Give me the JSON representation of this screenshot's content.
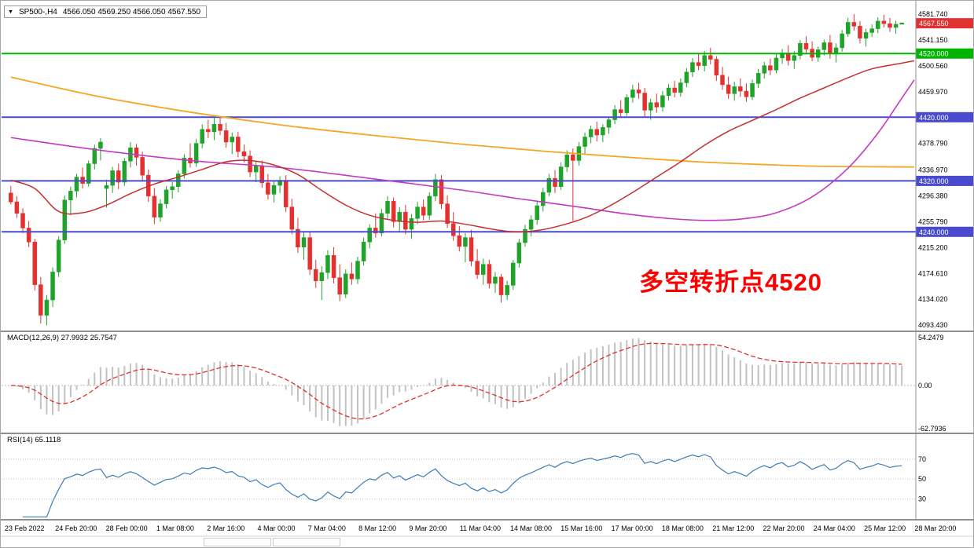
{
  "header": {
    "symbol_period": "SP500-,H4",
    "ohlc": "4566.050 4569.250 4566.050 4567.550"
  },
  "annotation": {
    "text": "多空转折点4520",
    "color": "#ff0000"
  },
  "chart_data": {
    "type": "candlestick",
    "title": "SP500-,H4",
    "timeframe": "H4",
    "colors": {
      "up": "#1fa32a",
      "down": "#e53030",
      "macd_hist": "#c2c2c2",
      "macd_signal": "#e03030",
      "rsi": "#3e7bb6",
      "level_dotted": "#c0c0c0",
      "divider": "#8f8f8f"
    },
    "x_labels": [
      "23 Feb 2022",
      "24 Feb 20:00",
      "28 Feb 00:00",
      "1 Mar 08:00",
      "2 Mar 16:00",
      "4 Mar 00:00",
      "7 Mar 04:00",
      "8 Mar 12:00",
      "9 Mar 20:00",
      "11 Mar 04:00",
      "14 Mar 08:00",
      "15 Mar 16:00",
      "17 Mar 00:00",
      "18 Mar 08:00",
      "21 Mar 12:00",
      "22 Mar 20:00",
      "24 Mar 04:00",
      "25 Mar 12:00",
      "28 Mar 20:00"
    ],
    "candles": [
      [
        4301,
        4312,
        4283,
        4287
      ],
      [
        4287,
        4296,
        4262,
        4269
      ],
      [
        4269,
        4277,
        4238,
        4246
      ],
      [
        4246,
        4257,
        4216,
        4224
      ],
      [
        4224,
        4229,
        4148,
        4157
      ],
      [
        4157,
        4169,
        4096,
        4109
      ],
      [
        4109,
        4141,
        4093,
        4133
      ],
      [
        4133,
        4184,
        4122,
        4177
      ],
      [
        4177,
        4233,
        4169,
        4227
      ],
      [
        4227,
        4297,
        4221,
        4290
      ],
      [
        4290,
        4311,
        4266,
        4304
      ],
      [
        4304,
        4331,
        4294,
        4326
      ],
      [
        4326,
        4341,
        4308,
        4316
      ],
      [
        4316,
        4352,
        4311,
        4347
      ],
      [
        4347,
        4377,
        4338,
        4371
      ],
      [
        4371,
        4387,
        4352,
        4381
      ],
      [
        4308,
        4322,
        4278,
        4313
      ],
      [
        4313,
        4342,
        4301,
        4336
      ],
      [
        4336,
        4347,
        4307,
        4318
      ],
      [
        4318,
        4356,
        4312,
        4351
      ],
      [
        4351,
        4381,
        4341,
        4372
      ],
      [
        4372,
        4378,
        4344,
        4357
      ],
      [
        4357,
        4366,
        4321,
        4329
      ],
      [
        4329,
        4338,
        4287,
        4296
      ],
      [
        4296,
        4309,
        4252,
        4263
      ],
      [
        4263,
        4291,
        4256,
        4284
      ],
      [
        4284,
        4312,
        4277,
        4306
      ],
      [
        4306,
        4318,
        4292,
        4311
      ],
      [
        4311,
        4337,
        4302,
        4331
      ],
      [
        4331,
        4362,
        4324,
        4356
      ],
      [
        4356,
        4379,
        4341,
        4348
      ],
      [
        4348,
        4386,
        4342,
        4379
      ],
      [
        4379,
        4409,
        4371,
        4401
      ],
      [
        4401,
        4416,
        4387,
        4397
      ],
      [
        4397,
        4419,
        4384,
        4409
      ],
      [
        4409,
        4421,
        4392,
        4399
      ],
      [
        4399,
        4411,
        4372,
        4381
      ],
      [
        4381,
        4396,
        4362,
        4389
      ],
      [
        4389,
        4397,
        4357,
        4366
      ],
      [
        4366,
        4377,
        4349,
        4359
      ],
      [
        4359,
        4368,
        4326,
        4334
      ],
      [
        4334,
        4351,
        4318,
        4344
      ],
      [
        4344,
        4352,
        4309,
        4317
      ],
      [
        4317,
        4331,
        4291,
        4299
      ],
      [
        4299,
        4321,
        4286,
        4313
      ],
      [
        4313,
        4327,
        4301,
        4321
      ],
      [
        4321,
        4329,
        4271,
        4279
      ],
      [
        4279,
        4292,
        4236,
        4244
      ],
      [
        4244,
        4262,
        4207,
        4216
      ],
      [
        4216,
        4241,
        4196,
        4231
      ],
      [
        4231,
        4239,
        4172,
        4181
      ],
      [
        4181,
        4196,
        4152,
        4163
      ],
      [
        4163,
        4186,
        4133,
        4176
      ],
      [
        4176,
        4211,
        4166,
        4203
      ],
      [
        4203,
        4216,
        4159,
        4168
      ],
      [
        4168,
        4189,
        4131,
        4142
      ],
      [
        4142,
        4181,
        4136,
        4174
      ],
      [
        4174,
        4192,
        4157,
        4166
      ],
      [
        4166,
        4201,
        4158,
        4194
      ],
      [
        4194,
        4231,
        4187,
        4224
      ],
      [
        4224,
        4252,
        4214,
        4246
      ],
      [
        4246,
        4269,
        4231,
        4238
      ],
      [
        4238,
        4276,
        4233,
        4269
      ],
      [
        4269,
        4296,
        4259,
        4288
      ],
      [
        4288,
        4294,
        4247,
        4256
      ],
      [
        4256,
        4279,
        4241,
        4271
      ],
      [
        4271,
        4282,
        4236,
        4244
      ],
      [
        4244,
        4268,
        4229,
        4261
      ],
      [
        4261,
        4287,
        4252,
        4279
      ],
      [
        4279,
        4291,
        4258,
        4266
      ],
      [
        4266,
        4302,
        4259,
        4296
      ],
      [
        4296,
        4331,
        4288,
        4322
      ],
      [
        4322,
        4329,
        4276,
        4284
      ],
      [
        4284,
        4297,
        4246,
        4253
      ],
      [
        4253,
        4271,
        4226,
        4234
      ],
      [
        4234,
        4249,
        4209,
        4217
      ],
      [
        4217,
        4238,
        4192,
        4231
      ],
      [
        4231,
        4243,
        4186,
        4194
      ],
      [
        4194,
        4213,
        4166,
        4173
      ],
      [
        4173,
        4198,
        4157,
        4189
      ],
      [
        4189,
        4196,
        4151,
        4159
      ],
      [
        4159,
        4177,
        4144,
        4169
      ],
      [
        4169,
        4174,
        4129,
        4141
      ],
      [
        4141,
        4163,
        4133,
        4156
      ],
      [
        4156,
        4196,
        4149,
        4191
      ],
      [
        4191,
        4229,
        4184,
        4223
      ],
      [
        4223,
        4251,
        4217,
        4244
      ],
      [
        4244,
        4266,
        4233,
        4259
      ],
      [
        4259,
        4288,
        4251,
        4281
      ],
      [
        4281,
        4309,
        4272,
        4302
      ],
      [
        4302,
        4331,
        4296,
        4324
      ],
      [
        4324,
        4337,
        4301,
        4311
      ],
      [
        4311,
        4349,
        4306,
        4342
      ],
      [
        4342,
        4368,
        4334,
        4361
      ],
      [
        4361,
        4371,
        4257,
        4352
      ],
      [
        4352,
        4381,
        4344,
        4374
      ],
      [
        4374,
        4396,
        4361,
        4389
      ],
      [
        4389,
        4407,
        4379,
        4401
      ],
      [
        4401,
        4413,
        4382,
        4392
      ],
      [
        4392,
        4409,
        4381,
        4404
      ],
      [
        4404,
        4421,
        4394,
        4416
      ],
      [
        4416,
        4439,
        4409,
        4432
      ],
      [
        4432,
        4447,
        4419,
        4427
      ],
      [
        4427,
        4456,
        4422,
        4451
      ],
      [
        4451,
        4471,
        4443,
        4463
      ],
      [
        4463,
        4474,
        4449,
        4458
      ],
      [
        4458,
        4466,
        4421,
        4431
      ],
      [
        4431,
        4449,
        4416,
        4443
      ],
      [
        4443,
        4457,
        4427,
        4436
      ],
      [
        4436,
        4461,
        4429,
        4454
      ],
      [
        4454,
        4472,
        4446,
        4466
      ],
      [
        4466,
        4477,
        4451,
        4459
      ],
      [
        4459,
        4481,
        4452,
        4474
      ],
      [
        4474,
        4497,
        4467,
        4491
      ],
      [
        4491,
        4513,
        4483,
        4506
      ],
      [
        4506,
        4521,
        4494,
        4501
      ],
      [
        4501,
        4524,
        4492,
        4517
      ],
      [
        4517,
        4529,
        4503,
        4511
      ],
      [
        4511,
        4516,
        4477,
        4486
      ],
      [
        4486,
        4499,
        4463,
        4471
      ],
      [
        4471,
        4484,
        4449,
        4457
      ],
      [
        4457,
        4476,
        4446,
        4468
      ],
      [
        4468,
        4481,
        4452,
        4461
      ],
      [
        4461,
        4473,
        4444,
        4452
      ],
      [
        4452,
        4479,
        4447,
        4473
      ],
      [
        4473,
        4496,
        4466,
        4489
      ],
      [
        4489,
        4507,
        4481,
        4501
      ],
      [
        4501,
        4512,
        4486,
        4494
      ],
      [
        4494,
        4519,
        4489,
        4513
      ],
      [
        4513,
        4527,
        4504,
        4521
      ],
      [
        4521,
        4533,
        4501,
        4509
      ],
      [
        4509,
        4524,
        4496,
        4517
      ],
      [
        4517,
        4541,
        4511,
        4536
      ],
      [
        4536,
        4547,
        4519,
        4527
      ],
      [
        4527,
        4539,
        4508,
        4514
      ],
      [
        4514,
        4531,
        4507,
        4526
      ],
      [
        4526,
        4542,
        4517,
        4537
      ],
      [
        4537,
        4549,
        4512,
        4521
      ],
      [
        4521,
        4536,
        4506,
        4529
      ],
      [
        4529,
        4557,
        4523,
        4551
      ],
      [
        4551,
        4576,
        4546,
        4569
      ],
      [
        4569,
        4582,
        4556,
        4563
      ],
      [
        4563,
        4571,
        4536,
        4544
      ],
      [
        4544,
        4559,
        4531,
        4553
      ],
      [
        4553,
        4566,
        4546,
        4559
      ],
      [
        4559,
        4577,
        4552,
        4571
      ],
      [
        4571,
        4581,
        4561,
        4567
      ],
      [
        4567,
        4576,
        4554,
        4561
      ],
      [
        4561,
        4572,
        4551,
        4566
      ],
      [
        4566,
        4569,
        4566,
        4568
      ]
    ],
    "price_axis": {
      "ticks": [
        {
          "label": "4581.740",
          "value": 4581.74
        },
        {
          "label": "4541.150",
          "value": 4541.15
        },
        {
          "label": "4500.560",
          "value": 4500.56
        },
        {
          "label": "4459.970",
          "value": 4459.97
        },
        {
          "label": "4378.790",
          "value": 4378.79
        },
        {
          "label": "4336.970",
          "value": 4336.97
        },
        {
          "label": "4296.380",
          "value": 4296.38
        },
        {
          "label": "4255.790",
          "value": 4255.79
        },
        {
          "label": "4215.200",
          "value": 4215.2
        },
        {
          "label": "4174.610",
          "value": 4174.61
        },
        {
          "label": "4134.020",
          "value": 4134.02
        },
        {
          "label": "4093.430",
          "value": 4093.43
        }
      ],
      "boxes": [
        {
          "label": "4567.550",
          "value": 4567.55,
          "color": "#e03232",
          "line": false
        },
        {
          "label": "4520.000",
          "value": 4520.0,
          "color": "#00b400",
          "line": true,
          "line_width": 2
        },
        {
          "label": "4420.000",
          "value": 4420.0,
          "color": "#4a4ace",
          "line": true,
          "line_width": 2
        },
        {
          "label": "4320.000",
          "value": 4320.0,
          "color": "#4a4ace",
          "line": true,
          "line_width": 2
        },
        {
          "label": "4240.000",
          "value": 4240.0,
          "color": "#4a4ace",
          "line": true,
          "line_width": 2
        }
      ]
    },
    "moving_averages": [
      {
        "name": "ma-slow-orange",
        "color": "#f5a623",
        "width": 1.8,
        "anchors": [
          [
            0,
            4483
          ],
          [
            15,
            4452
          ],
          [
            30,
            4428
          ],
          [
            45,
            4408
          ],
          [
            60,
            4392
          ],
          [
            75,
            4378
          ],
          [
            90,
            4366
          ],
          [
            105,
            4356
          ],
          [
            115,
            4350
          ],
          [
            125,
            4346
          ],
          [
            135,
            4343
          ],
          [
            149,
            4342
          ]
        ]
      },
      {
        "name": "ma-mid-magenta",
        "color": "#c23ac2",
        "width": 1.6,
        "anchors": [
          [
            0,
            4388
          ],
          [
            15,
            4368
          ],
          [
            30,
            4352
          ],
          [
            45,
            4341
          ],
          [
            60,
            4324
          ],
          [
            75,
            4306
          ],
          [
            85,
            4292
          ],
          [
            95,
            4279
          ],
          [
            103,
            4268
          ],
          [
            110,
            4261
          ],
          [
            116,
            4258
          ],
          [
            122,
            4260
          ],
          [
            128,
            4270
          ],
          [
            134,
            4295
          ],
          [
            140,
            4340
          ],
          [
            145,
            4395
          ],
          [
            149,
            4450
          ]
        ]
      },
      {
        "name": "ma-fast-red",
        "color": "#c62f2f",
        "width": 1.5,
        "anchors": [
          [
            0,
            4321
          ],
          [
            4,
            4308
          ],
          [
            8,
            4272
          ],
          [
            12,
            4270
          ],
          [
            16,
            4282
          ],
          [
            20,
            4300
          ],
          [
            24,
            4315
          ],
          [
            28,
            4326
          ],
          [
            32,
            4338
          ],
          [
            36,
            4350
          ],
          [
            40,
            4352
          ],
          [
            44,
            4345
          ],
          [
            48,
            4330
          ],
          [
            52,
            4305
          ],
          [
            56,
            4282
          ],
          [
            60,
            4266
          ],
          [
            64,
            4258
          ],
          [
            68,
            4255
          ],
          [
            72,
            4257
          ],
          [
            76,
            4252
          ],
          [
            80,
            4245
          ],
          [
            84,
            4240
          ],
          [
            88,
            4242
          ],
          [
            92,
            4250
          ],
          [
            96,
            4262
          ],
          [
            100,
            4280
          ],
          [
            104,
            4302
          ],
          [
            108,
            4326
          ],
          [
            112,
            4350
          ],
          [
            116,
            4376
          ],
          [
            120,
            4398
          ],
          [
            124,
            4415
          ],
          [
            128,
            4432
          ],
          [
            132,
            4450
          ],
          [
            136,
            4466
          ],
          [
            140,
            4482
          ],
          [
            144,
            4496
          ],
          [
            149,
            4505
          ]
        ]
      }
    ],
    "indicators": {
      "macd": {
        "label": "MACD(12,26,9) 27.9932 25.7547",
        "params": [
          12,
          26,
          9
        ],
        "current_values": [
          "27.9932",
          "25.7547"
        ],
        "axis_labels": {
          "max": "54.2479",
          "zero": "0.00",
          "min": "-62.7936"
        }
      },
      "rsi": {
        "label": "RSI(14) 65.1118",
        "period": 14,
        "current_value": "65.1118",
        "levels": [
          70,
          50,
          30
        ]
      }
    }
  }
}
